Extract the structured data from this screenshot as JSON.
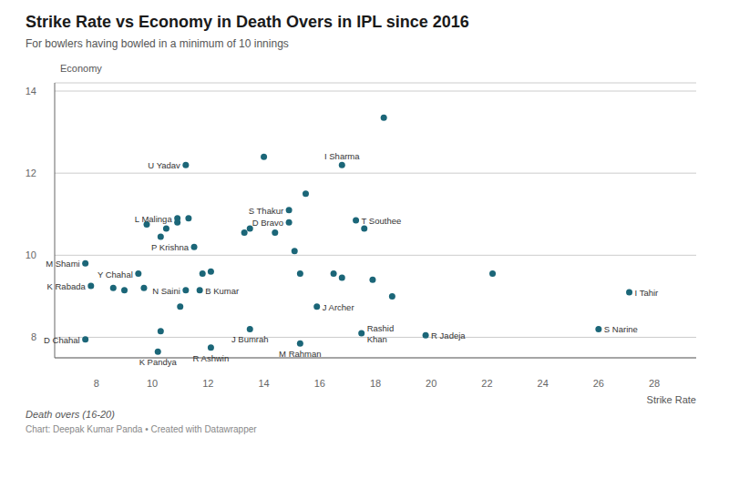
{
  "chart_data": {
    "type": "scatter",
    "title": "Strike Rate vs Economy in Death Overs in IPL since 2016",
    "subtitle": "For bowlers having bowled in a minimum of 10 innings",
    "xlabel": "Strike Rate",
    "ylabel": "Economy",
    "footnotes": [
      "Death overs (16-20)",
      "Chart: Deepak Kumar Panda • Created with Datawrapper"
    ],
    "xlim": [
      6.5,
      29.5
    ],
    "ylim": [
      7.5,
      14.2
    ],
    "xticks": [
      8,
      10,
      12,
      14,
      16,
      18,
      20,
      22,
      24,
      26,
      28
    ],
    "yticks": [
      8,
      10,
      12,
      14
    ],
    "grid": true,
    "color": "#1b6678",
    "x": [
      7.6,
      7.8,
      7.6,
      8.6,
      9.0,
      9.5,
      9.7,
      10.2,
      10.3,
      9.8,
      10.3,
      10.9,
      10.5,
      10.9,
      11.2,
      11.7,
      11.5,
      11.3,
      11.0,
      12.1,
      11.8,
      12.1,
      11.2,
      13.3,
      13.5,
      13.5,
      14.9,
      14.9,
      14.0,
      14.4,
      15.3,
      15.1,
      15.3,
      15.9,
      15.5,
      16.8,
      16.5,
      16.8,
      17.3,
      17.5,
      17.6,
      17.9,
      18.3,
      18.6,
      19.8,
      22.2,
      26.0,
      27.1
    ],
    "values": [
      9.8,
      9.25,
      7.95,
      9.2,
      9.15,
      9.55,
      9.2,
      7.65,
      8.15,
      10.75,
      10.45,
      10.9,
      10.65,
      10.8,
      9.15,
      9.15,
      10.2,
      10.9,
      8.75,
      7.75,
      9.55,
      9.6,
      12.2,
      10.55,
      10.65,
      8.2,
      11.1,
      10.8,
      12.4,
      10.55,
      7.85,
      10.1,
      9.55,
      8.75,
      11.5,
      12.2,
      9.55,
      9.45,
      10.85,
      8.1,
      10.65,
      9.4,
      13.35,
      9.0,
      8.05,
      9.55,
      8.2,
      9.1
    ],
    "labels": [
      "M Shami",
      "K Rabada",
      "D Chahal",
      null,
      null,
      "Y Chahal",
      null,
      "K Pandya",
      null,
      null,
      null,
      "L Malinga",
      null,
      null,
      "N Saini",
      "B Kumar",
      "P Krishna",
      null,
      null,
      "R Ashwin",
      null,
      null,
      "U Yadav",
      null,
      null,
      "J Bumrah",
      "S Thakur",
      "D Bravo",
      null,
      null,
      "M Rahman",
      null,
      null,
      "J Archer",
      null,
      "I Sharma",
      null,
      null,
      "T Southee",
      "Rashid\nKhan",
      null,
      null,
      null,
      null,
      "R Jadeja",
      null,
      "S Narine",
      "I Tahir"
    ]
  }
}
